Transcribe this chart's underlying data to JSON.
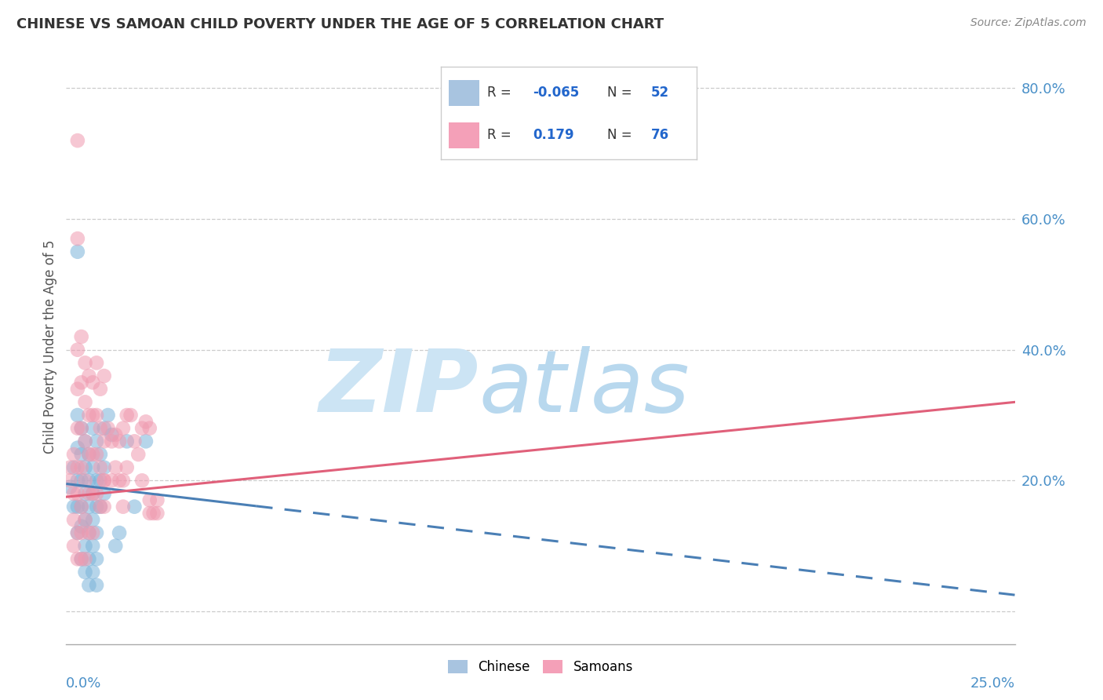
{
  "title": "CHINESE VS SAMOAN CHILD POVERTY UNDER THE AGE OF 5 CORRELATION CHART",
  "source": "Source: ZipAtlas.com",
  "ylabel": "Child Poverty Under the Age of 5",
  "xmin": 0.0,
  "xmax": 0.25,
  "ymin": -0.05,
  "ymax": 0.86,
  "chinese_color": "#7ab3d9",
  "samoan_color": "#f09ab0",
  "chinese_line_color": "#4a7fb5",
  "samoan_line_color": "#e0607a",
  "watermark_zip_color": "#c5dff0",
  "watermark_atlas_color": "#c0d8e8",
  "chinese_points": [
    [
      0.001,
      0.19
    ],
    [
      0.002,
      0.22
    ],
    [
      0.002,
      0.16
    ],
    [
      0.003,
      0.3
    ],
    [
      0.003,
      0.25
    ],
    [
      0.003,
      0.2
    ],
    [
      0.003,
      0.16
    ],
    [
      0.003,
      0.12
    ],
    [
      0.003,
      0.55
    ],
    [
      0.004,
      0.28
    ],
    [
      0.004,
      0.24
    ],
    [
      0.004,
      0.2
    ],
    [
      0.004,
      0.16
    ],
    [
      0.004,
      0.13
    ],
    [
      0.004,
      0.08
    ],
    [
      0.005,
      0.26
    ],
    [
      0.005,
      0.22
    ],
    [
      0.005,
      0.18
    ],
    [
      0.005,
      0.14
    ],
    [
      0.005,
      0.1
    ],
    [
      0.005,
      0.06
    ],
    [
      0.006,
      0.24
    ],
    [
      0.006,
      0.2
    ],
    [
      0.006,
      0.16
    ],
    [
      0.006,
      0.12
    ],
    [
      0.006,
      0.08
    ],
    [
      0.006,
      0.04
    ],
    [
      0.007,
      0.28
    ],
    [
      0.007,
      0.22
    ],
    [
      0.007,
      0.18
    ],
    [
      0.007,
      0.14
    ],
    [
      0.007,
      0.1
    ],
    [
      0.007,
      0.06
    ],
    [
      0.008,
      0.26
    ],
    [
      0.008,
      0.2
    ],
    [
      0.008,
      0.16
    ],
    [
      0.008,
      0.12
    ],
    [
      0.008,
      0.08
    ],
    [
      0.008,
      0.04
    ],
    [
      0.009,
      0.24
    ],
    [
      0.009,
      0.2
    ],
    [
      0.009,
      0.16
    ],
    [
      0.01,
      0.22
    ],
    [
      0.01,
      0.18
    ],
    [
      0.01,
      0.28
    ],
    [
      0.011,
      0.3
    ],
    [
      0.012,
      0.27
    ],
    [
      0.013,
      0.1
    ],
    [
      0.014,
      0.12
    ],
    [
      0.016,
      0.26
    ],
    [
      0.018,
      0.16
    ],
    [
      0.021,
      0.26
    ]
  ],
  "samoan_points": [
    [
      0.001,
      0.2
    ],
    [
      0.001,
      0.22
    ],
    [
      0.002,
      0.24
    ],
    [
      0.002,
      0.18
    ],
    [
      0.002,
      0.14
    ],
    [
      0.002,
      0.1
    ],
    [
      0.003,
      0.72
    ],
    [
      0.003,
      0.57
    ],
    [
      0.003,
      0.4
    ],
    [
      0.003,
      0.34
    ],
    [
      0.003,
      0.28
    ],
    [
      0.003,
      0.22
    ],
    [
      0.003,
      0.18
    ],
    [
      0.003,
      0.12
    ],
    [
      0.003,
      0.08
    ],
    [
      0.004,
      0.42
    ],
    [
      0.004,
      0.35
    ],
    [
      0.004,
      0.28
    ],
    [
      0.004,
      0.22
    ],
    [
      0.004,
      0.16
    ],
    [
      0.004,
      0.12
    ],
    [
      0.004,
      0.08
    ],
    [
      0.005,
      0.38
    ],
    [
      0.005,
      0.32
    ],
    [
      0.005,
      0.26
    ],
    [
      0.005,
      0.2
    ],
    [
      0.005,
      0.14
    ],
    [
      0.005,
      0.08
    ],
    [
      0.006,
      0.36
    ],
    [
      0.006,
      0.3
    ],
    [
      0.006,
      0.24
    ],
    [
      0.006,
      0.18
    ],
    [
      0.006,
      0.12
    ],
    [
      0.007,
      0.35
    ],
    [
      0.007,
      0.3
    ],
    [
      0.007,
      0.24
    ],
    [
      0.007,
      0.18
    ],
    [
      0.007,
      0.12
    ],
    [
      0.008,
      0.38
    ],
    [
      0.008,
      0.3
    ],
    [
      0.008,
      0.24
    ],
    [
      0.008,
      0.18
    ],
    [
      0.009,
      0.34
    ],
    [
      0.009,
      0.28
    ],
    [
      0.009,
      0.22
    ],
    [
      0.009,
      0.16
    ],
    [
      0.01,
      0.36
    ],
    [
      0.01,
      0.26
    ],
    [
      0.01,
      0.2
    ],
    [
      0.01,
      0.16
    ],
    [
      0.01,
      0.2
    ],
    [
      0.011,
      0.28
    ],
    [
      0.012,
      0.26
    ],
    [
      0.012,
      0.2
    ],
    [
      0.013,
      0.27
    ],
    [
      0.013,
      0.22
    ],
    [
      0.014,
      0.26
    ],
    [
      0.014,
      0.2
    ],
    [
      0.015,
      0.28
    ],
    [
      0.015,
      0.2
    ],
    [
      0.015,
      0.16
    ],
    [
      0.016,
      0.3
    ],
    [
      0.016,
      0.22
    ],
    [
      0.017,
      0.3
    ],
    [
      0.018,
      0.26
    ],
    [
      0.019,
      0.24
    ],
    [
      0.02,
      0.28
    ],
    [
      0.02,
      0.2
    ],
    [
      0.021,
      0.29
    ],
    [
      0.022,
      0.28
    ],
    [
      0.022,
      0.17
    ],
    [
      0.022,
      0.15
    ],
    [
      0.023,
      0.15
    ],
    [
      0.024,
      0.17
    ],
    [
      0.024,
      0.15
    ]
  ],
  "chinese_line_x0": 0.0,
  "chinese_line_y0": 0.195,
  "chinese_line_x1": 0.25,
  "chinese_line_y1": 0.025,
  "chinese_solid_xend": 0.05,
  "samoan_line_x0": 0.0,
  "samoan_line_y0": 0.175,
  "samoan_line_x1": 0.25,
  "samoan_line_y1": 0.32
}
